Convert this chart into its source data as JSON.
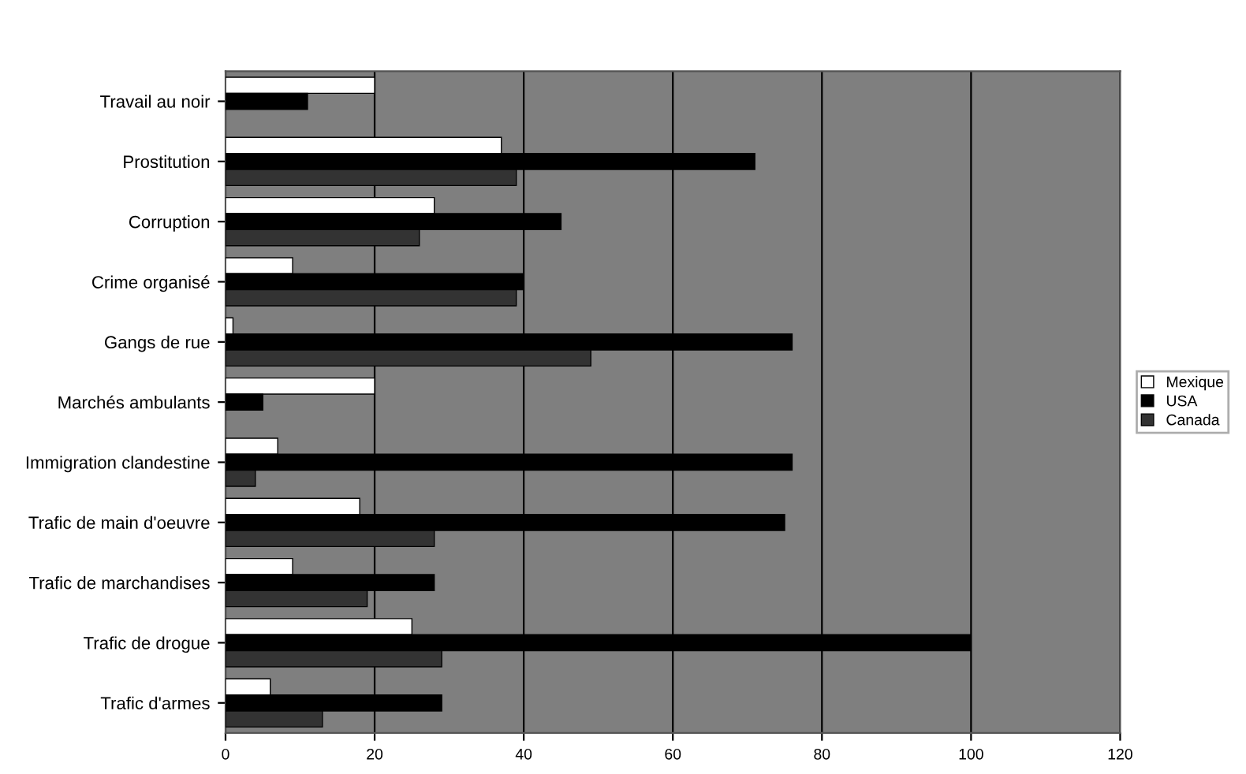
{
  "chart_data": {
    "type": "bar",
    "orientation": "horizontal",
    "categories": [
      "Travail au noir",
      "Prostitution",
      "Corruption",
      "Crime organisé",
      "Gangs de rue",
      "Marchés ambulants",
      "Immigration clandestine",
      "Trafic de main d'oeuvre",
      "Trafic de marchandises",
      "Trafic de drogue",
      "Trafic d'armes"
    ],
    "series": [
      {
        "name": "Mexique",
        "color": "#ffffff",
        "values": [
          20,
          37,
          28,
          9,
          1,
          20,
          7,
          18,
          9,
          25,
          6
        ]
      },
      {
        "name": "USA",
        "color": "#000000",
        "values": [
          11,
          71,
          45,
          40,
          76,
          5,
          76,
          75,
          28,
          100,
          29
        ]
      },
      {
        "name": "Canada",
        "color": "#333333",
        "values": [
          null,
          39,
          26,
          39,
          49,
          null,
          4,
          28,
          19,
          29,
          13
        ]
      }
    ],
    "xlim": [
      0,
      120
    ],
    "xticks": [
      0,
      20,
      40,
      60,
      80,
      100,
      120
    ],
    "grid": "x",
    "legend": "right"
  }
}
